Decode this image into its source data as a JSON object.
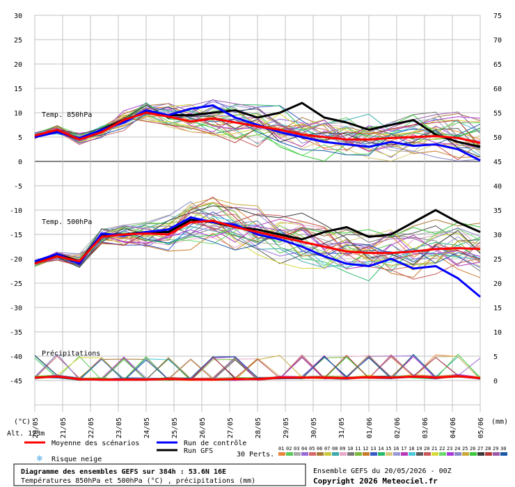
{
  "chart_data": {
    "type": "line",
    "title": "Diagramme des ensembles GEFS sur 384h : 53.6N 16E",
    "subtitle": "Températures 850hPa et 500hPa (°C) , précipitations (mm)",
    "left_axis": {
      "unit": "(°C)",
      "ticks": [
        30,
        25,
        20,
        15,
        10,
        5,
        0,
        -5,
        -10,
        -15,
        -20,
        -25,
        -30,
        -35,
        -40,
        -45
      ],
      "range": [
        -45,
        30
      ]
    },
    "right_axis": {
      "unit": "(mm)",
      "ticks": [
        75,
        70,
        65,
        60,
        55,
        50,
        45,
        40,
        35,
        30,
        25,
        20,
        15,
        10,
        5,
        0
      ],
      "range": [
        0,
        75
      ]
    },
    "altitude_label": "Alt. 123m",
    "x_labels": [
      "20/05",
      "21/05",
      "22/05",
      "23/05",
      "24/05",
      "25/05",
      "26/05",
      "27/05",
      "28/05",
      "29/05",
      "30/05",
      "31/05",
      "01/06",
      "02/06",
      "03/06",
      "04/06",
      "05/06"
    ],
    "panel_labels": {
      "t850": "Temp. 850hPa",
      "t500": "Temp. 500hPa",
      "precip": "Précipitations"
    },
    "series": [
      {
        "name": "Moyenne des scénarios",
        "color": "#ff0000",
        "t850": [
          5.3,
          6.5,
          4.5,
          6.0,
          8.5,
          10.0,
          9.2,
          8.2,
          8.8,
          8.0,
          7.2,
          6.5,
          5.5,
          5.0,
          4.5,
          4.5,
          4.8,
          5.0,
          5.2,
          4.8,
          3.8
        ],
        "t500": [
          -21.0,
          -19.5,
          -20.5,
          -15.5,
          -15.0,
          -14.8,
          -15.0,
          -12.5,
          -12.2,
          -13.5,
          -14.5,
          -15.5,
          -16.5,
          -17.5,
          -18.5,
          -18.8,
          -18.8,
          -18.5,
          -18.0,
          -17.8,
          -18.0
        ],
        "precip": [
          0.6,
          0.8,
          0.3,
          0.2,
          0.2,
          0.2,
          0.3,
          0.2,
          0.2,
          0.3,
          0.3,
          0.6,
          0.6,
          0.6,
          0.5,
          0.7,
          0.6,
          0.8,
          0.6,
          0.9,
          0.5
        ]
      },
      {
        "name": "Run de contrôle",
        "color": "#0000ff",
        "t850": [
          5.0,
          6.0,
          4.8,
          6.5,
          8.0,
          10.5,
          9.5,
          10.8,
          11.5,
          9.0,
          7.5,
          6.0,
          5.0,
          4.0,
          3.5,
          3.0,
          4.0,
          3.2,
          3.5,
          2.5,
          0.2
        ],
        "t500": [
          -20.5,
          -19.0,
          -21.0,
          -14.8,
          -15.2,
          -14.5,
          -14.0,
          -11.5,
          -12.5,
          -13.0,
          -15.0,
          -16.0,
          -17.5,
          -19.5,
          -21.0,
          -21.5,
          -20.0,
          -22.0,
          -21.5,
          -24.0,
          -27.8
        ]
      },
      {
        "name": "Run GFS",
        "color": "#000000",
        "t850": [
          5.0,
          6.2,
          4.5,
          6.5,
          8.5,
          10.2,
          9.5,
          9.5,
          10.0,
          10.5,
          9.0,
          10.0,
          12.0,
          9.0,
          8.0,
          6.5,
          7.5,
          8.5,
          5.5,
          4.0,
          3.0
        ],
        "t500": [
          -21.0,
          -19.0,
          -20.5,
          -15.0,
          -15.0,
          -14.5,
          -14.5,
          -12.0,
          -12.5,
          -13.5,
          -14.0,
          -15.0,
          -16.0,
          -14.5,
          -13.5,
          -15.5,
          -15.0,
          -12.5,
          -10.0,
          -12.5,
          -14.5
        ]
      }
    ],
    "legend": {
      "mean": "Moyenne des scénarios",
      "control": "Run de contrôle",
      "gfs": "Run GFS",
      "snow": "Risque neige",
      "perts_label": "30 Perts.",
      "perts": [
        "01",
        "02",
        "03",
        "04",
        "05",
        "06",
        "07",
        "08",
        "09",
        "10",
        "11",
        "12",
        "13",
        "14",
        "15",
        "16",
        "17",
        "18",
        "19",
        "20",
        "21",
        "22",
        "23",
        "24",
        "25",
        "26",
        "27",
        "28",
        "29",
        "30"
      ]
    },
    "ensemble_info": "Ensemble GEFS du 20/05/2026 - 00Z",
    "copyright": "Copyright 2026 Meteociel.fr",
    "grid": true
  },
  "colors": {
    "grid": "#c0c0c0",
    "mean": "#ff0000",
    "control": "#0000ff",
    "gfs": "#000000",
    "snow": "#4aa8e8",
    "perts": [
      "#e8843a",
      "#58c858",
      "#a8a8a8",
      "#9868d8",
      "#d86868",
      "#a87838",
      "#c8c83a",
      "#38a8a8",
      "#e8a8c8",
      "#787878",
      "#78b838",
      "#c87828",
      "#3858c8",
      "#28b868",
      "#d8c878",
      "#9898d8",
      "#b838b8",
      "#48c8d8",
      "#585858",
      "#c85858",
      "#d8d838",
      "#68d868",
      "#a838d8",
      "#8888c8",
      "#c8a838",
      "#38c838",
      "#383838",
      "#b83838",
      "#9858a8",
      "#1858a8"
    ]
  }
}
